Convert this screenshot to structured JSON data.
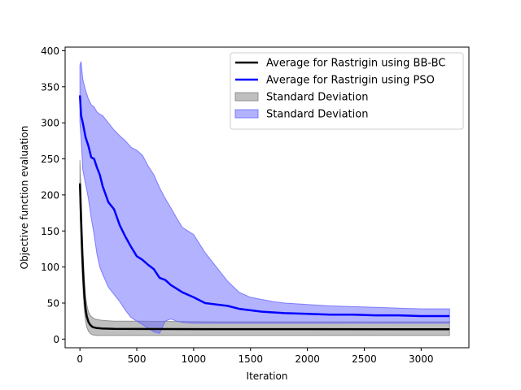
{
  "chart_data": {
    "type": "line",
    "title": "",
    "xlabel": "Iteration",
    "ylabel": "Objective function evaluation",
    "xlim": [
      -130,
      3420
    ],
    "ylim": [
      -12,
      405
    ],
    "xticks": [
      0,
      500,
      1000,
      1500,
      2000,
      2500,
      3000
    ],
    "yticks": [
      0,
      50,
      100,
      150,
      200,
      250,
      300,
      350,
      400
    ],
    "grid": false,
    "legend_position": "top-right",
    "colors": {
      "bbbc_line": "#000000",
      "bbbc_band": "#808080",
      "pso_line": "#0000ff",
      "pso_band": "#6666ff"
    },
    "series": [
      {
        "name": "Average for Rastrigin using BB-BC",
        "kind": "line",
        "color": "#000000",
        "x": [
          0,
          10,
          20,
          30,
          40,
          50,
          60,
          75,
          90,
          110,
          130,
          150,
          200,
          300,
          500,
          800,
          1200,
          2000,
          3000,
          3250
        ],
        "y": [
          216,
          165,
          120,
          85,
          58,
          42,
          32,
          24,
          20,
          17,
          16,
          15.3,
          14.6,
          14.2,
          14,
          13.9,
          13.8,
          13.8,
          13.7,
          13.7
        ]
      },
      {
        "name": "Average for Rastrigin using PSO",
        "kind": "line",
        "color": "#0000ff",
        "x": [
          0,
          10,
          25,
          50,
          75,
          100,
          125,
          150,
          175,
          200,
          250,
          300,
          350,
          400,
          450,
          500,
          550,
          600,
          650,
          700,
          750,
          800,
          850,
          900,
          1000,
          1100,
          1200,
          1300,
          1400,
          1500,
          1600,
          1700,
          1800,
          2000,
          2200,
          2400,
          2600,
          2800,
          3000,
          3250
        ],
        "y": [
          338,
          310,
          300,
          280,
          268,
          252,
          250,
          238,
          228,
          212,
          190,
          180,
          158,
          142,
          128,
          115,
          110,
          103,
          97,
          85,
          82,
          75,
          70,
          65,
          58,
          50,
          48,
          46,
          42,
          40,
          38,
          37,
          36,
          35,
          34,
          34,
          33,
          33,
          32,
          32
        ]
      },
      {
        "name": "Standard Deviation",
        "kind": "band",
        "color": "#808080",
        "x": [
          0,
          10,
          20,
          30,
          40,
          50,
          60,
          75,
          90,
          110,
          130,
          150,
          200,
          300,
          500,
          800,
          1200,
          2000,
          3000,
          3250
        ],
        "upper": [
          248,
          200,
          150,
          110,
          80,
          60,
          48,
          38,
          33,
          30,
          28,
          27,
          26,
          25,
          25,
          24.5,
          24,
          24,
          24,
          24
        ],
        "lower": [
          185,
          130,
          90,
          60,
          38,
          25,
          17,
          11,
          8,
          6,
          5.5,
          5,
          5,
          5,
          5,
          5,
          5,
          5,
          5,
          5
        ]
      },
      {
        "name": "Standard Deviation",
        "kind": "band",
        "color": "#6666ff",
        "x": [
          0,
          10,
          25,
          50,
          75,
          100,
          125,
          150,
          175,
          200,
          250,
          300,
          350,
          400,
          450,
          500,
          550,
          600,
          650,
          700,
          750,
          800,
          850,
          900,
          1000,
          1100,
          1200,
          1300,
          1400,
          1500,
          1600,
          1700,
          1800,
          2000,
          2200,
          2400,
          2600,
          2800,
          3000,
          3250
        ],
        "upper": [
          380,
          385,
          360,
          345,
          333,
          325,
          322,
          315,
          312,
          310,
          300,
          290,
          282,
          275,
          266,
          262,
          255,
          240,
          228,
          210,
          195,
          182,
          168,
          155,
          145,
          120,
          100,
          80,
          65,
          58,
          55,
          52,
          50,
          48,
          46,
          45,
          44,
          43,
          42,
          42
        ],
        "lower": [
          300,
          280,
          235,
          215,
          195,
          168,
          145,
          118,
          100,
          90,
          72,
          62,
          52,
          40,
          30,
          25,
          20,
          15,
          10,
          8,
          25,
          28,
          25,
          23,
          22,
          22,
          22,
          22,
          22,
          22,
          22,
          22,
          22,
          22,
          22,
          22,
          22,
          22,
          22,
          22
        ]
      }
    ],
    "legend": [
      {
        "label": "Average for Rastrigin using BB-BC",
        "kind": "line",
        "color": "#000000"
      },
      {
        "label": "Average for Rastrigin using PSO",
        "kind": "line",
        "color": "#0000ff"
      },
      {
        "label": "Standard Deviation",
        "kind": "patch",
        "color": "#808080"
      },
      {
        "label": "Standard Deviation",
        "kind": "patch",
        "color": "#6666ff"
      }
    ]
  }
}
